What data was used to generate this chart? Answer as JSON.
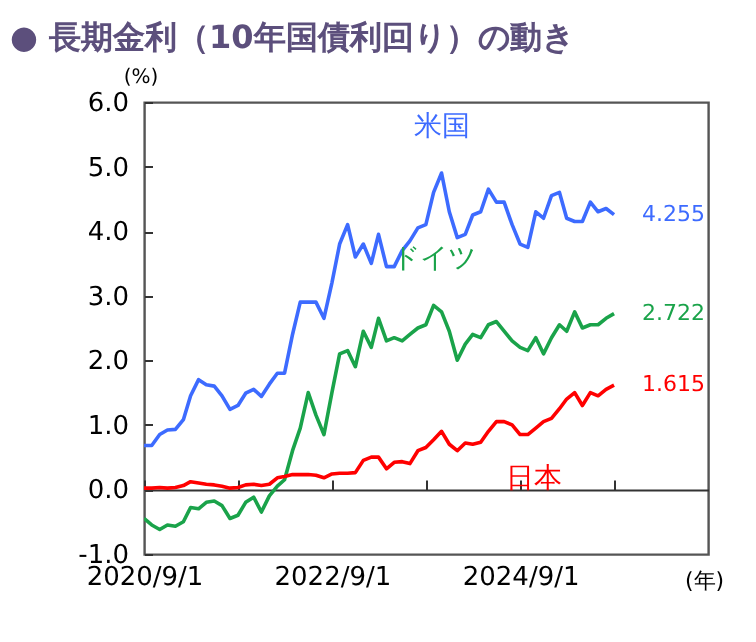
{
  "chart_data": {
    "type": "line",
    "title": "● 長期金利（10年国債利回り）の動き",
    "xlabel": "(年)",
    "ylabel": "(%)",
    "x": [
      "2020-09-01",
      "2020-10-01",
      "2020-11-01",
      "2020-12-01",
      "2021-01-01",
      "2021-02-01",
      "2021-03-01",
      "2021-04-01",
      "2021-05-01",
      "2021-06-01",
      "2021-07-01",
      "2021-08-01",
      "2021-09-01",
      "2021-10-01",
      "2021-11-01",
      "2021-12-01",
      "2022-01-01",
      "2022-02-01",
      "2022-03-01",
      "2022-04-01",
      "2022-05-01",
      "2022-06-01",
      "2022-07-01",
      "2022-08-01",
      "2022-09-01",
      "2022-10-01",
      "2022-11-01",
      "2022-12-01",
      "2023-01-01",
      "2023-02-01",
      "2023-03-01",
      "2023-04-01",
      "2023-05-01",
      "2023-06-01",
      "2023-07-01",
      "2023-08-01",
      "2023-09-01",
      "2023-10-01",
      "2023-11-01",
      "2023-12-01",
      "2024-01-01",
      "2024-02-01",
      "2024-03-01",
      "2024-04-01",
      "2024-05-01",
      "2024-06-01",
      "2024-07-01",
      "2024-08-01",
      "2024-09-01",
      "2024-10-01",
      "2024-11-01",
      "2024-12-01",
      "2025-01-01",
      "2025-02-01",
      "2025-03-01",
      "2025-04-01",
      "2025-05-01",
      "2025-06-01",
      "2025-07-01",
      "2025-08-01",
      "2025-09-01"
    ],
    "series": [
      {
        "name": "米国",
        "color": "#3d6bff",
        "values": [
          0.68,
          0.68,
          0.85,
          0.92,
          0.93,
          1.08,
          1.45,
          1.7,
          1.62,
          1.6,
          1.45,
          1.24,
          1.3,
          1.49,
          1.55,
          1.44,
          1.63,
          1.8,
          1.8,
          2.4,
          2.9,
          2.9,
          2.9,
          2.65,
          3.2,
          3.8,
          4.1,
          3.6,
          3.8,
          3.5,
          3.95,
          3.45,
          3.45,
          3.7,
          3.85,
          4.05,
          4.1,
          4.6,
          4.9,
          4.3,
          3.9,
          3.95,
          4.25,
          4.3,
          4.65,
          4.45,
          4.45,
          4.1,
          3.8,
          3.75,
          4.3,
          4.2,
          4.55,
          4.6,
          4.2,
          4.15,
          4.15,
          4.45,
          4.3,
          4.35,
          4.255
        ]
      },
      {
        "name": "ドイツ",
        "color": "#1aa34a",
        "values": [
          -0.45,
          -0.55,
          -0.62,
          -0.55,
          -0.57,
          -0.5,
          -0.28,
          -0.3,
          -0.2,
          -0.18,
          -0.25,
          -0.45,
          -0.4,
          -0.2,
          -0.12,
          -0.35,
          -0.1,
          0.05,
          0.15,
          0.6,
          0.95,
          1.5,
          1.15,
          0.85,
          1.5,
          2.1,
          2.15,
          1.9,
          2.45,
          2.2,
          2.65,
          2.3,
          2.35,
          2.3,
          2.4,
          2.5,
          2.55,
          2.85,
          2.75,
          2.45,
          2.0,
          2.25,
          2.4,
          2.35,
          2.55,
          2.6,
          2.45,
          2.3,
          2.2,
          2.15,
          2.35,
          2.1,
          2.35,
          2.55,
          2.45,
          2.75,
          2.5,
          2.55,
          2.55,
          2.65,
          2.722
        ]
      },
      {
        "name": "日本",
        "color": "#ff0000",
        "values": [
          0.02,
          0.02,
          0.03,
          0.02,
          0.03,
          0.06,
          0.12,
          0.1,
          0.08,
          0.07,
          0.05,
          0.02,
          0.03,
          0.07,
          0.08,
          0.06,
          0.08,
          0.18,
          0.2,
          0.23,
          0.23,
          0.23,
          0.22,
          0.18,
          0.24,
          0.25,
          0.25,
          0.26,
          0.45,
          0.5,
          0.5,
          0.32,
          0.42,
          0.43,
          0.4,
          0.6,
          0.65,
          0.77,
          0.9,
          0.7,
          0.6,
          0.72,
          0.7,
          0.73,
          0.9,
          1.05,
          1.05,
          1.0,
          0.85,
          0.85,
          0.95,
          1.05,
          1.1,
          1.25,
          1.4,
          1.5,
          1.3,
          1.5,
          1.45,
          1.55,
          1.615
        ]
      }
    ],
    "xlim": [
      "2020-09-01",
      "2026-09-01"
    ],
    "xticks": [
      {
        "value": "2020-09-01",
        "label": "2020/9/1"
      },
      {
        "value": "2021-09-01",
        "label": null
      },
      {
        "value": "2022-09-01",
        "label": "2022/9/1"
      },
      {
        "value": "2023-09-01",
        "label": null
      },
      {
        "value": "2024-09-01",
        "label": "2024/9/1"
      },
      {
        "value": "2025-09-01",
        "label": null
      }
    ],
    "ylim": [
      -1,
      6
    ],
    "yticks": [
      {
        "value": -1,
        "label": "-1.0"
      },
      {
        "value": 0,
        "label": "0.0"
      },
      {
        "value": 1,
        "label": "1.0"
      },
      {
        "value": 2,
        "label": "2.0"
      },
      {
        "value": 3,
        "label": "3.0"
      },
      {
        "value": 4,
        "label": "4.0"
      },
      {
        "value": 5,
        "label": "5.0"
      },
      {
        "value": 6,
        "label": "6.0"
      }
    ],
    "annotations": [
      {
        "text": "4.255",
        "x": "2025-09-01",
        "y": 4.255
      },
      {
        "text": "2.722",
        "x": "2025-09-01",
        "y": 2.722
      },
      {
        "text": "1.615",
        "x": "2025-09-01",
        "y": 1.615
      }
    ]
  }
}
